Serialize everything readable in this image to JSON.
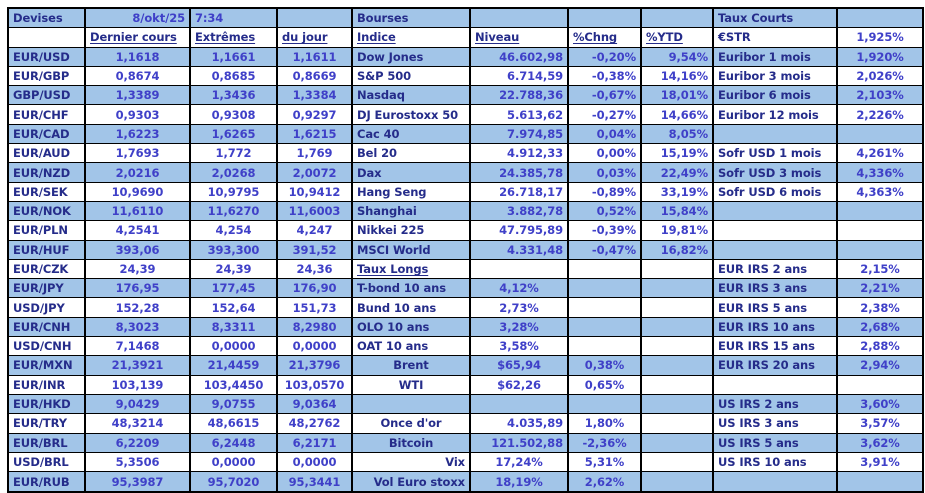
{
  "colors": {
    "band_blue": "#A2C5E8",
    "label_navy": "#252C8A",
    "value_blue": "#3F40C8",
    "border_black": "#000000"
  },
  "devises_section": {
    "title": "Devises",
    "date": "8/okt/25",
    "time": "7:34",
    "headers": {
      "last": "Dernier cours",
      "extremes": "Extrêmes",
      "of_day": "du jour"
    },
    "rows": [
      {
        "pair": "EUR/USD",
        "last": "1,1618",
        "high": "1,1661",
        "low": "1,1611"
      },
      {
        "pair": "EUR/GBP",
        "last": "0,8674",
        "high": "0,8685",
        "low": "0,8669"
      },
      {
        "pair": "GBP/USD",
        "last": "1,3389",
        "high": "1,3436",
        "low": "1,3384"
      },
      {
        "pair": "EUR/CHF",
        "last": "0,9303",
        "high": "0,9308",
        "low": "0,9297"
      },
      {
        "pair": "EUR/CAD",
        "last": "1,6223",
        "high": "1,6265",
        "low": "1,6215"
      },
      {
        "pair": "EUR/AUD",
        "last": "1,7693",
        "high": "1,772",
        "low": "1,769"
      },
      {
        "pair": "EUR/NZD",
        "last": "2,0216",
        "high": "2,0268",
        "low": "2,0072"
      },
      {
        "pair": "EUR/SEK",
        "last": "10,9690",
        "high": "10,9795",
        "low": "10,9412"
      },
      {
        "pair": "EUR/NOK",
        "last": "11,6110",
        "high": "11,6270",
        "low": "11,6003"
      },
      {
        "pair": "EUR/PLN",
        "last": "4,2541",
        "high": "4,254",
        "low": "4,247"
      },
      {
        "pair": "EUR/HUF",
        "last": "393,06",
        "high": "393,300",
        "low": "391,52"
      },
      {
        "pair": "EUR/CZK",
        "last": "24,39",
        "high": "24,39",
        "low": "24,36"
      },
      {
        "pair": "EUR/JPY",
        "last": "176,95",
        "high": "177,45",
        "low": "176,90"
      },
      {
        "pair": "USD/JPY",
        "last": "152,28",
        "high": "152,64",
        "low": "151,73"
      },
      {
        "pair": "EUR/CNH",
        "last": "8,3023",
        "high": "8,3311",
        "low": "8,2980"
      },
      {
        "pair": "USD/CNH",
        "last": "7,1468",
        "high": "0,0000",
        "low": "0,0000"
      },
      {
        "pair": "EUR/MXN",
        "last": "21,3921",
        "high": "21,4459",
        "low": "21,3796"
      },
      {
        "pair": "EUR/INR",
        "last": "103,139",
        "high": "103,4450",
        "low": "103,0570"
      },
      {
        "pair": "EUR/HKD",
        "last": "9,0429",
        "high": "9,0755",
        "low": "9,0364"
      },
      {
        "pair": "EUR/TRY",
        "last": "48,3214",
        "high": "48,6615",
        "low": "48,2762"
      },
      {
        "pair": "EUR/BRL",
        "last": "6,2209",
        "high": "6,2448",
        "low": "6,2171"
      },
      {
        "pair": "USD/BRL",
        "last": "5,3506",
        "high": "0,0000",
        "low": "0,0000"
      },
      {
        "pair": "EUR/RUB",
        "last": "95,3987",
        "high": "95,7020",
        "low": "95,3441"
      }
    ]
  },
  "bourses_section": {
    "title": "Bourses",
    "headers": {
      "index": "Indice",
      "level": "Niveau",
      "chng": "%Chng",
      "ytd": "%YTD"
    },
    "indices": [
      {
        "name": "Dow Jones",
        "level": "46.602,98",
        "chng": "-0,20%",
        "ytd": "9,54%"
      },
      {
        "name": "S&P 500",
        "level": "6.714,59",
        "chng": "-0,38%",
        "ytd": "14,16%"
      },
      {
        "name": "Nasdaq",
        "level": "22.788,36",
        "chng": "-0,67%",
        "ytd": "18,01%"
      },
      {
        "name": "DJ Eurostoxx 50",
        "level": "5.613,62",
        "chng": "-0,27%",
        "ytd": "14,66%"
      },
      {
        "name": "Cac 40",
        "level": "7.974,85",
        "chng": "0,04%",
        "ytd": "8,05%"
      },
      {
        "name": "Bel 20",
        "level": "4.912,33",
        "chng": "0,00%",
        "ytd": "15,19%"
      },
      {
        "name": "Dax",
        "level": "24.385,78",
        "chng": "0,03%",
        "ytd": "22,49%"
      },
      {
        "name": "Hang Seng",
        "level": "26.718,17",
        "chng": "-0,89%",
        "ytd": "33,19%"
      },
      {
        "name": "Shanghai",
        "level": "3.882,78",
        "chng": "0,52%",
        "ytd": "15,84%"
      },
      {
        "name": "Nikkei 225",
        "level": "47.795,89",
        "chng": "-0,39%",
        "ytd": "19,81%"
      },
      {
        "name": "MSCI World",
        "level": "4.331,48",
        "chng": "-0,47%",
        "ytd": "16,82%"
      }
    ],
    "taux_longs_title": "Taux Longs",
    "taux_longs": [
      {
        "name": "T-bond 10 ans",
        "value": "4,12%"
      },
      {
        "name": "Bund 10 ans",
        "value": "2,73%"
      },
      {
        "name": "OLO 10 ans",
        "value": "3,28%"
      },
      {
        "name": "OAT 10 ans",
        "value": "3,58%"
      }
    ],
    "commodities": [
      {
        "name": "Brent",
        "level": "$65,94",
        "chng": "0,38%"
      },
      {
        "name": "WTI",
        "level": "$62,26",
        "chng": "0,65%"
      }
    ],
    "others": [
      {
        "name": "Once d'or",
        "level": "4.035,89",
        "chng": "1,80%"
      },
      {
        "name": "Bitcoin",
        "level": "121.502,88",
        "chng": "-2,36%"
      },
      {
        "name": "Vix",
        "level": "17,24%",
        "chng": "5,31%"
      },
      {
        "name": "Vol Euro stoxx",
        "level": "18,19%",
        "chng": "2,62%"
      }
    ]
  },
  "taux_courts_section": {
    "title": "Taux Courts",
    "estr": {
      "name": "€STR",
      "value": "1,925%"
    },
    "euribor": [
      {
        "name": "Euribor 1 mois",
        "value": "1,920%"
      },
      {
        "name": "Euribor 3 mois",
        "value": "2,026%"
      },
      {
        "name": "Euribor 6 mois",
        "value": "2,103%"
      },
      {
        "name": "Euribor 12 mois",
        "value": "2,226%"
      }
    ],
    "sofr": [
      {
        "name": "Sofr USD 1 mois",
        "value": "4,261%"
      },
      {
        "name": "Sofr USD 3 mois",
        "value": "4,336%"
      },
      {
        "name": "Sofr USD 6 mois",
        "value": "4,363%"
      }
    ],
    "eur_irs": [
      {
        "name": "EUR IRS 2 ans",
        "value": "2,15%"
      },
      {
        "name": "EUR IRS 3 ans",
        "value": "2,21%"
      },
      {
        "name": "EUR IRS 5 ans",
        "value": "2,38%"
      },
      {
        "name": "EUR IRS 10 ans",
        "value": "2,68%"
      },
      {
        "name": "EUR IRS 15 ans",
        "value": "2,88%"
      },
      {
        "name": "EUR IRS 20 ans",
        "value": "2,94%"
      }
    ],
    "us_irs": [
      {
        "name": "US IRS 2 ans",
        "value": "3,60%"
      },
      {
        "name": "US IRS 3 ans",
        "value": "3,57%"
      },
      {
        "name": "US IRS 5 ans",
        "value": "3,62%"
      },
      {
        "name": "US IRS 10 ans",
        "value": "3,91%"
      }
    ]
  }
}
